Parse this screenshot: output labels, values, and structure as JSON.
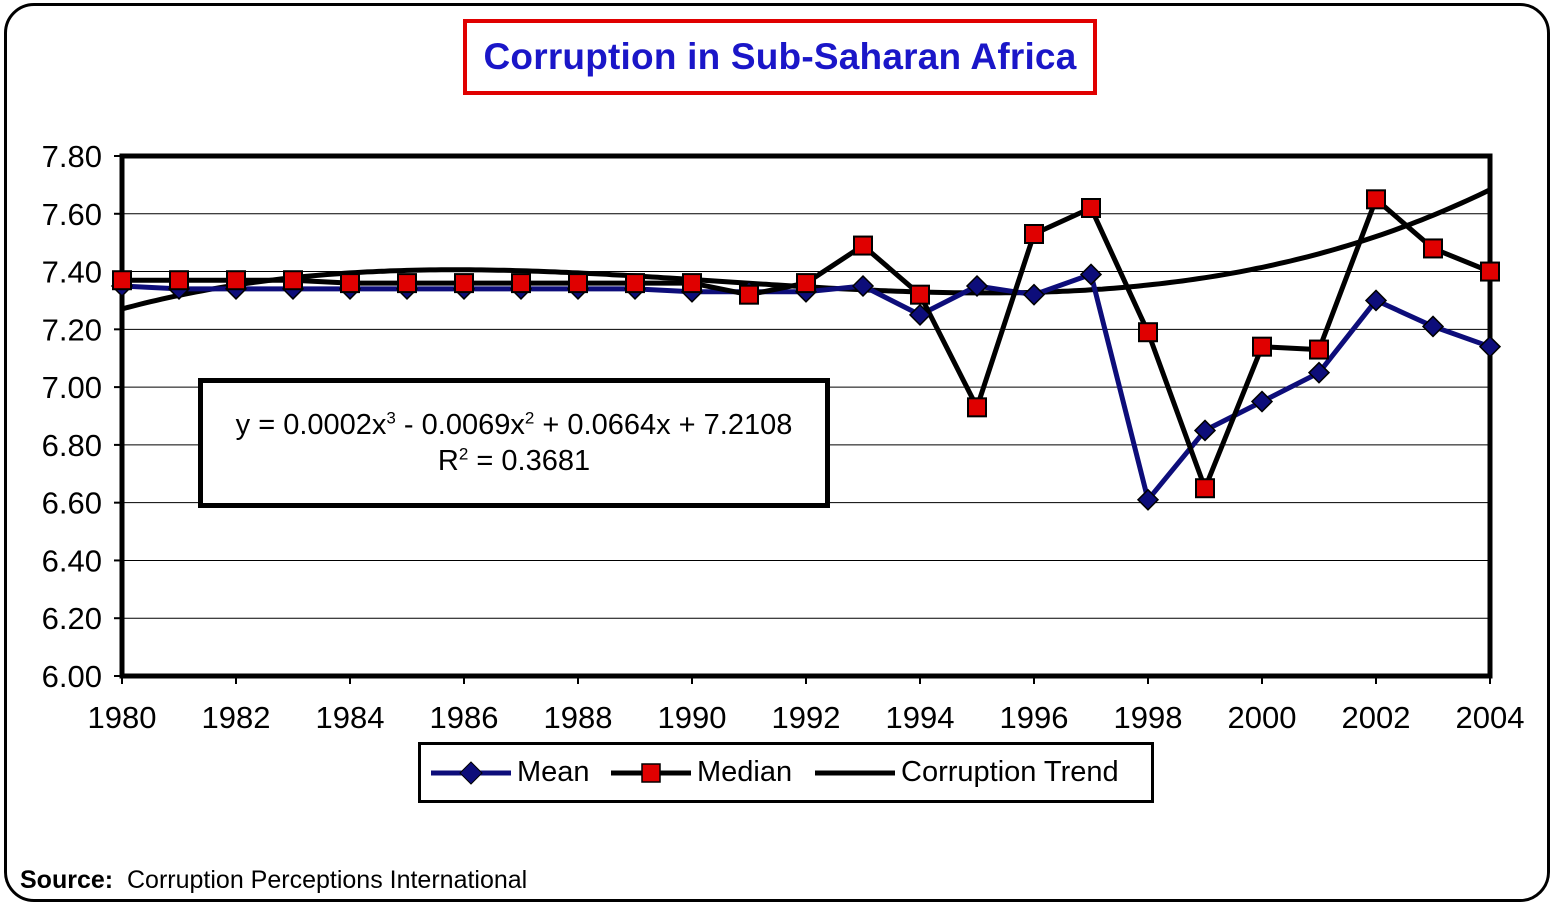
{
  "title": "Corruption in Sub-Saharan Africa",
  "source": {
    "label": "Source:",
    "text": "Corruption Perceptions International"
  },
  "equation": {
    "line1_prefix": "y = 0.0002x",
    "exp1": "3",
    "line1_mid": " - 0.0069x",
    "exp2": "2",
    "line1_suffix": " + 0.0664x + 7.2108",
    "r2_prefix": "R",
    "r2_exp": "2",
    "r2_suffix": " = 0.3681"
  },
  "legend": [
    {
      "name": "Mean",
      "color": "#0d0d7a",
      "marker": "diamond"
    },
    {
      "name": "Median",
      "color": "#000000",
      "marker": "square",
      "markerColor": "#e00000"
    },
    {
      "name": "Corruption Trend",
      "color": "#000000",
      "marker": "none"
    }
  ],
  "chart_data": {
    "type": "line",
    "title": "Corruption in Sub-Saharan Africa",
    "xlabel": "",
    "ylabel": "",
    "x": [
      1980,
      1981,
      1982,
      1983,
      1984,
      1985,
      1986,
      1987,
      1988,
      1989,
      1990,
      1991,
      1992,
      1993,
      1994,
      1995,
      1996,
      1997,
      1998,
      1999,
      2000,
      2001,
      2002,
      2003,
      2004
    ],
    "xticks": [
      1980,
      1982,
      1984,
      1986,
      1988,
      1990,
      1992,
      1994,
      1996,
      1998,
      2000,
      2002,
      2004
    ],
    "ylim": [
      6.0,
      7.8
    ],
    "yticks": [
      "6.00",
      "6.20",
      "6.40",
      "6.60",
      "6.80",
      "7.00",
      "7.20",
      "7.40",
      "7.60",
      "7.80"
    ],
    "grid": true,
    "legend_position": "bottom",
    "series": [
      {
        "name": "Mean",
        "color": "#0d0d7a",
        "values": [
          7.35,
          7.34,
          7.34,
          7.34,
          7.34,
          7.34,
          7.34,
          7.34,
          7.34,
          7.34,
          7.33,
          7.33,
          7.33,
          7.35,
          7.25,
          7.35,
          7.32,
          7.39,
          6.61,
          6.85,
          6.95,
          7.05,
          7.3,
          7.21,
          7.14
        ]
      },
      {
        "name": "Median",
        "color": "#000000",
        "values": [
          7.37,
          7.37,
          7.37,
          7.37,
          7.36,
          7.36,
          7.36,
          7.36,
          7.36,
          7.36,
          7.36,
          7.32,
          7.36,
          7.49,
          7.32,
          6.93,
          7.53,
          7.62,
          7.19,
          6.65,
          7.14,
          7.13,
          7.65,
          7.48,
          7.4
        ]
      },
      {
        "name": "Corruption Trend",
        "color": "#000000",
        "trend": "polynomial-3",
        "coefficients": [
          0.0002,
          -0.0069,
          0.0664,
          7.2108
        ]
      }
    ],
    "annotations": [
      "y = 0.0002x3 - 0.0069x2 + 0.0664x + 7.2108",
      "R2 = 0.3681"
    ]
  }
}
